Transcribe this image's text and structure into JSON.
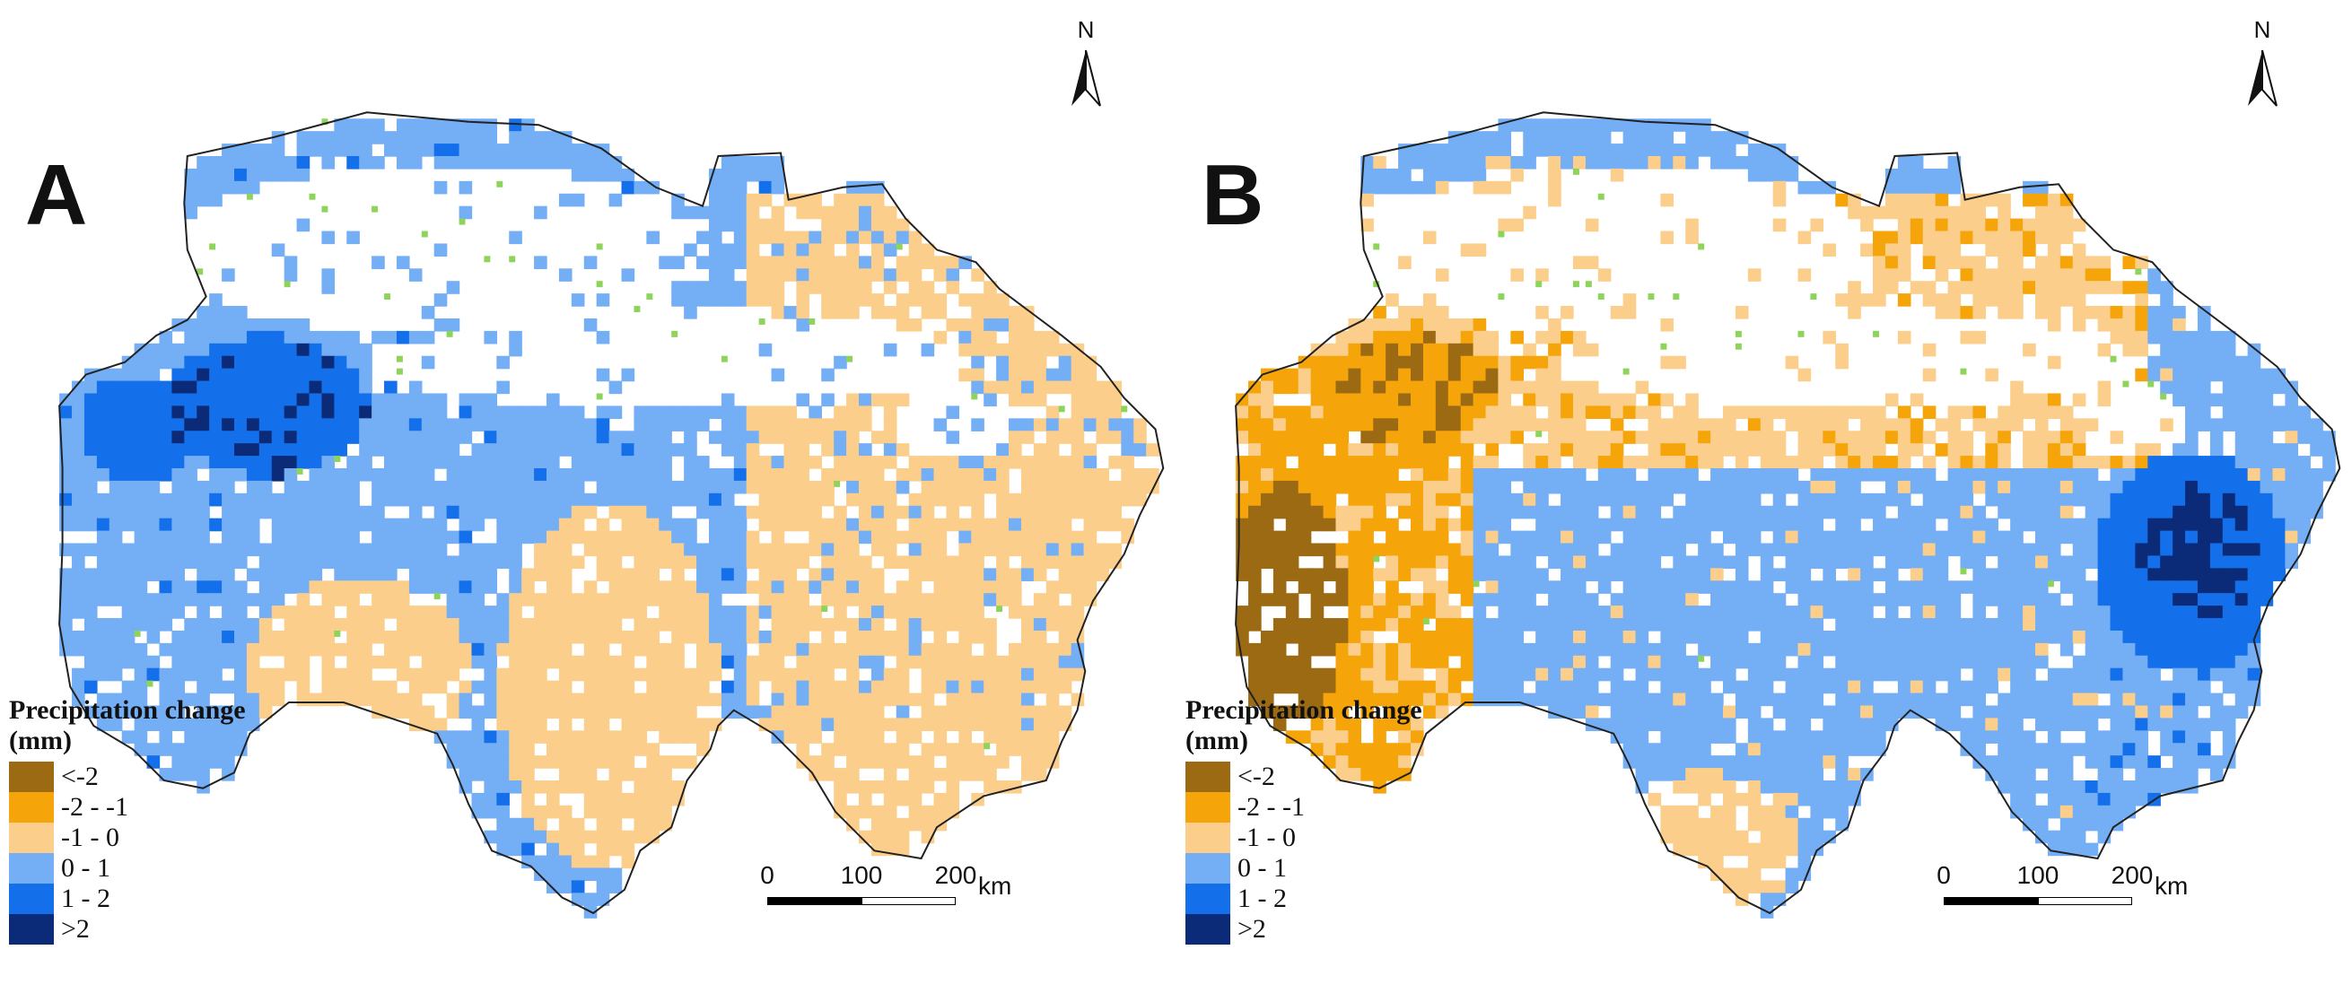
{
  "panels": [
    {
      "label": "A",
      "north_label": "N",
      "legend_title": "Precipitation change",
      "legend_unit": "(mm)",
      "scale": {
        "ticks": [
          "0",
          "100",
          "200"
        ],
        "unit": "km"
      },
      "dominant_pattern": "increase-west-decrease-east"
    },
    {
      "label": "B",
      "north_label": "N",
      "legend_title": "Precipitation change",
      "legend_unit": "(mm)",
      "scale": {
        "ticks": [
          "0",
          "100",
          "200"
        ],
        "unit": "km"
      },
      "dominant_pattern": "decrease-west-increase-east"
    }
  ],
  "legend_classes": [
    {
      "label": "<-2",
      "color": "#9c6a12"
    },
    {
      "label": "-2 - -1",
      "color": "#f5a40a"
    },
    {
      "label": "-1 - 0",
      "color": "#fbcf8b"
    },
    {
      "label": "0 - 1",
      "color": "#74aef5"
    },
    {
      "label": "1 - 2",
      "color": "#1370ea"
    },
    {
      "label": ">2",
      "color": "#0b2b79"
    }
  ],
  "colors": {
    "outline": "#222222",
    "empty": "#ffffff",
    "speck": "#8fd45a"
  }
}
